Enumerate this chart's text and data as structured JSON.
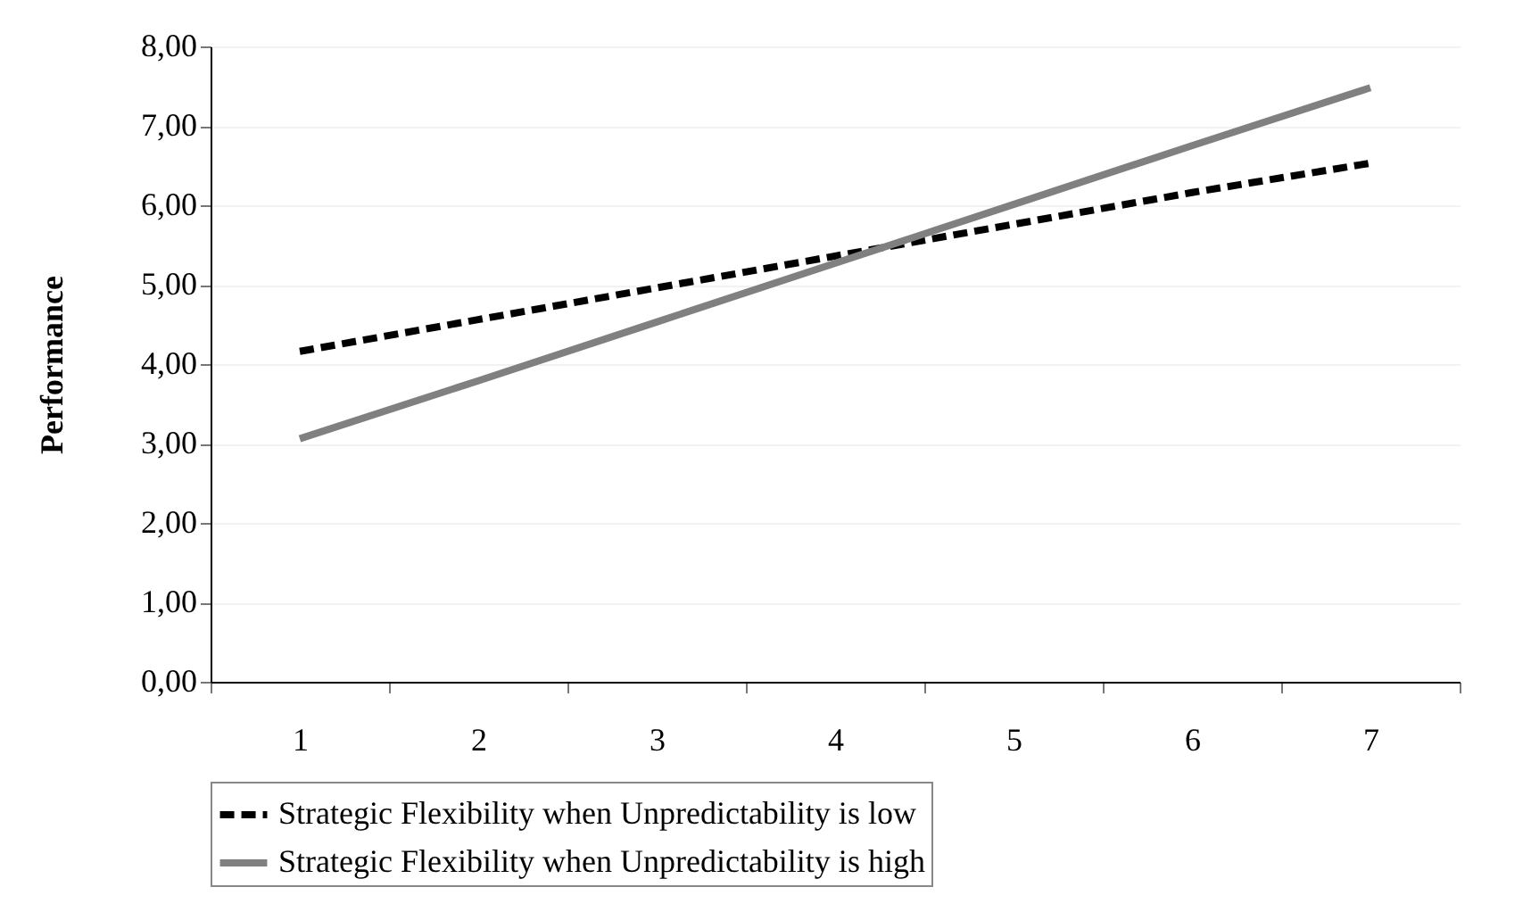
{
  "chart_data": {
    "type": "line",
    "ylabel": "Performance",
    "categories": [
      "1",
      "2",
      "3",
      "4",
      "5",
      "6",
      "7"
    ],
    "series": [
      {
        "name": "Strategic Flexibility when Unpredictability is low",
        "color": "#000000",
        "line_style": "dashed",
        "values": [
          4.16,
          4.56,
          4.96,
          5.36,
          5.76,
          6.16,
          6.53
        ]
      },
      {
        "name": "Strategic Flexibility when Unpredictability is high",
        "color": "#808080",
        "line_style": "solid",
        "values": [
          3.06,
          3.79,
          4.53,
          5.27,
          6.01,
          6.75,
          7.48
        ]
      }
    ],
    "ylim": [
      0,
      8
    ],
    "yticks": [
      {
        "value": 0,
        "label": "0,00"
      },
      {
        "value": 1,
        "label": "1,00"
      },
      {
        "value": 2,
        "label": "2,00"
      },
      {
        "value": 3,
        "label": "3,00"
      },
      {
        "value": 4,
        "label": "4,00"
      },
      {
        "value": 5,
        "label": "5,00"
      },
      {
        "value": 6,
        "label": "6,00"
      },
      {
        "value": 7,
        "label": "7,00"
      },
      {
        "value": 8,
        "label": "8,00"
      }
    ],
    "grid": "y",
    "legend": "bottom",
    "marker": "none"
  }
}
